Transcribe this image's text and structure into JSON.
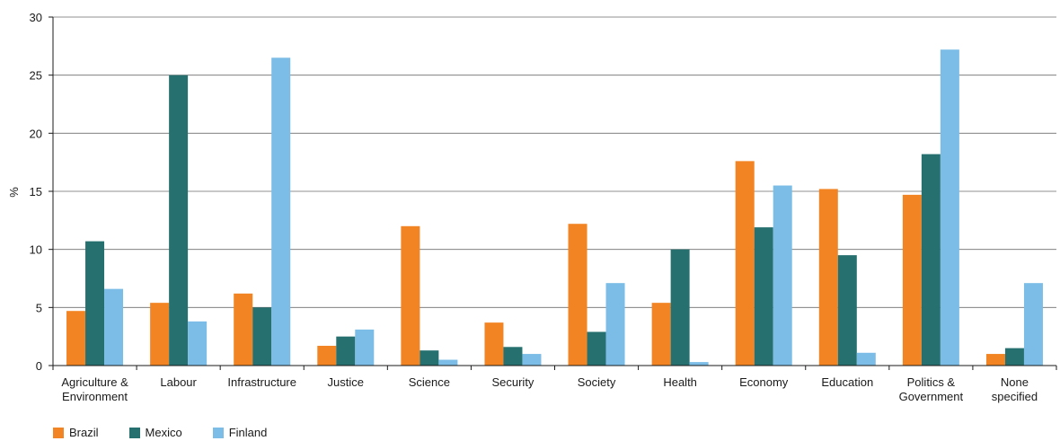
{
  "chart_data": {
    "type": "bar",
    "ylabel": "%",
    "ylim": [
      0,
      30
    ],
    "yticks": [
      0,
      5,
      10,
      15,
      20,
      25,
      30
    ],
    "grid": true,
    "legend_position": "bottom-left",
    "categories": [
      [
        "Agriculture &",
        "Environment"
      ],
      [
        "Labour"
      ],
      [
        "Infrastructure"
      ],
      [
        "Justice"
      ],
      [
        "Science"
      ],
      [
        "Security"
      ],
      [
        "Society"
      ],
      [
        "Health"
      ],
      [
        "Economy"
      ],
      [
        "Education"
      ],
      [
        "Politics &",
        "Government"
      ],
      [
        "None",
        "specified"
      ]
    ],
    "series": [
      {
        "name": "Brazil",
        "color": "#f28423",
        "values": [
          4.7,
          5.4,
          6.2,
          1.7,
          12.0,
          3.7,
          12.2,
          5.4,
          17.6,
          15.2,
          14.7,
          1.0
        ]
      },
      {
        "name": "Mexico",
        "color": "#26706f",
        "values": [
          10.7,
          25.0,
          5.0,
          2.5,
          1.3,
          1.6,
          2.9,
          10.0,
          11.9,
          9.5,
          18.2,
          1.5
        ]
      },
      {
        "name": "Finland",
        "color": "#7bbde6",
        "values": [
          6.6,
          3.8,
          26.5,
          3.1,
          0.5,
          1.0,
          7.1,
          0.3,
          15.5,
          1.1,
          27.2,
          7.1
        ]
      }
    ]
  }
}
